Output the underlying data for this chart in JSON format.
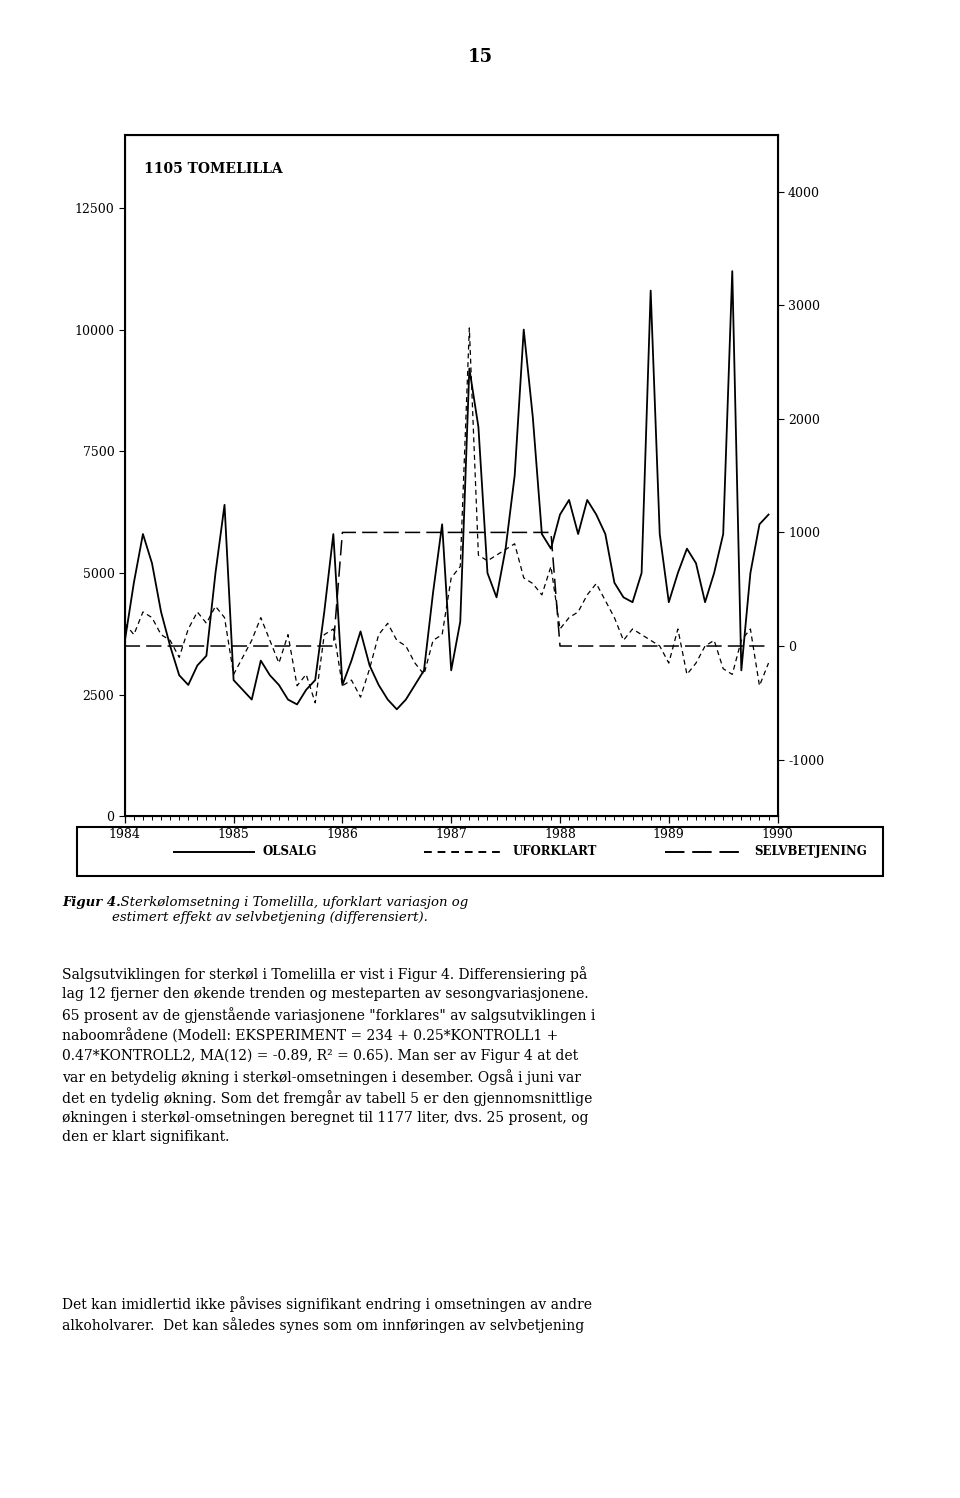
{
  "title_page_number": "15",
  "chart_label": "1105 TOMELILLA",
  "legend_items": [
    "OLSALG",
    "UFORKLART",
    "SELVBETJENING"
  ],
  "x_start_year": 1984,
  "n_months": 72,
  "left_ylim": [
    0,
    14000
  ],
  "right_ylim": [
    -1500,
    4500
  ],
  "left_yticks": [
    0,
    2500,
    5000,
    7500,
    10000,
    12500
  ],
  "right_yticks": [
    -1000,
    0,
    1000,
    2000,
    3000,
    4000
  ],
  "figure_caption_bold": "Figur 4.",
  "figure_caption_italic": "  Sterkølomsetning i Tomelilla, uforklart variasjon og\nestimert effekt av selvbetjening (differensiert).",
  "body_text1": "Salgsutviklingen for sterkøl i Tomelilla er vist i Figur 4. Differensiering på\nlag 12 fjerner den økende trenden og mesteparten av sesongvariasjonene.\n65 prosent av de gjenstående variasjonene \"forklares\" av salgsutviklingen i\nnaboområdene (Modell: EKSPERIMENT = 234 + 0.25*KONTROLL1 +\n0.47*KONTROLL2, MA(12) = -0.89, R² = 0.65). Man ser av Figur 4 at det\nvar en betydelig økning i sterkøl-omsetningen i desember. Også i juni var\ndet en tydelig økning. Som det fremgår av tabell 5 er den gjennomsnittlige\nøkningen i sterkøl-omsetningen beregnet til 1177 liter, dvs. 25 prosent, og\nden er klart signifikant.",
  "body_text2": "Det kan imidlertid ikke påvises signifikant endring i omsetningen av andre\nalkoholvarer.  Det kan således synes som om innføringen av selvbetjening",
  "olsalg": [
    3600,
    4800,
    5800,
    5200,
    4200,
    3500,
    2900,
    2700,
    3100,
    3300,
    5000,
    6400,
    2800,
    2600,
    2400,
    3200,
    2900,
    2700,
    2400,
    2300,
    2600,
    2800,
    4200,
    5800,
    2700,
    3200,
    3800,
    3100,
    2700,
    2400,
    2200,
    2400,
    2700,
    3000,
    4600,
    6000,
    3000,
    4000,
    9200,
    8000,
    5000,
    4500,
    5500,
    7000,
    10000,
    8200,
    5800,
    5500,
    6200,
    6500,
    5800,
    6500,
    6200,
    5800,
    4800,
    4500,
    4400,
    5000,
    10800,
    5800,
    4400,
    5000,
    5500,
    5200,
    4400,
    5000,
    5800,
    11200,
    3000,
    5000,
    6000,
    6200
  ],
  "uforklart": [
    200,
    100,
    300,
    250,
    100,
    50,
    -100,
    150,
    300,
    200,
    350,
    250,
    -250,
    -100,
    50,
    250,
    50,
    -150,
    100,
    -350,
    -250,
    -500,
    100,
    150,
    -350,
    -300,
    -450,
    -200,
    100,
    200,
    50,
    0,
    -150,
    -250,
    50,
    100,
    600,
    700,
    2800,
    800,
    750,
    800,
    850,
    900,
    600,
    550,
    450,
    700,
    150,
    250,
    300,
    450,
    550,
    400,
    250,
    50,
    150,
    100,
    50,
    0,
    -150,
    150,
    -250,
    -150,
    0,
    50,
    -200,
    -250,
    50,
    150,
    -350,
    -150
  ],
  "selvbetjening": [
    0,
    0,
    0,
    0,
    0,
    0,
    0,
    0,
    0,
    0,
    0,
    0,
    0,
    0,
    0,
    0,
    0,
    0,
    0,
    0,
    0,
    0,
    0,
    0,
    1000,
    1000,
    1000,
    1000,
    1000,
    1000,
    1000,
    1000,
    1000,
    1000,
    1000,
    1000,
    1000,
    1000,
    1000,
    1000,
    1000,
    1000,
    1000,
    1000,
    1000,
    1000,
    1000,
    1000,
    0,
    0,
    0,
    0,
    0,
    0,
    0,
    0,
    0,
    0,
    0,
    0,
    0,
    0,
    0,
    0,
    0,
    0,
    0,
    0,
    0,
    0,
    0,
    0
  ],
  "background_color": "#ffffff",
  "line_color": "#000000"
}
